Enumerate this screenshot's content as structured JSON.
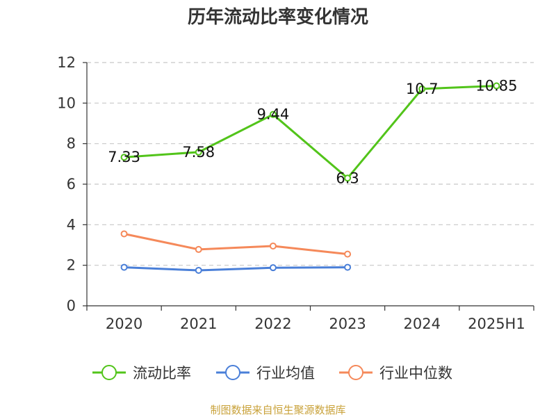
{
  "chart_data": {
    "type": "line",
    "title": "历年流动比率变化情况",
    "categories": [
      "2020",
      "2021",
      "2022",
      "2023",
      "2024",
      "2025H1"
    ],
    "ylim": [
      0,
      12
    ],
    "yticks": [
      0,
      2,
      4,
      6,
      8,
      10,
      12
    ],
    "grid": true,
    "legend_position": "bottom",
    "series": [
      {
        "name": "流动比率",
        "color": "#52c41a",
        "values": [
          7.33,
          7.58,
          9.44,
          6.3,
          10.7,
          10.85
        ],
        "labels": [
          "7.33",
          "7.58",
          "9.44",
          "6.3",
          "10.7",
          "10.85"
        ]
      },
      {
        "name": "行业均值",
        "color": "#4a7fd8",
        "values": [
          1.9,
          1.75,
          1.88,
          1.9,
          null,
          null
        ]
      },
      {
        "name": "行业中位数",
        "color": "#f5895a",
        "values": [
          3.55,
          2.78,
          2.95,
          2.55,
          null,
          null
        ]
      }
    ]
  },
  "footer": {
    "source": "制图数据来自恒生聚源数据库"
  }
}
